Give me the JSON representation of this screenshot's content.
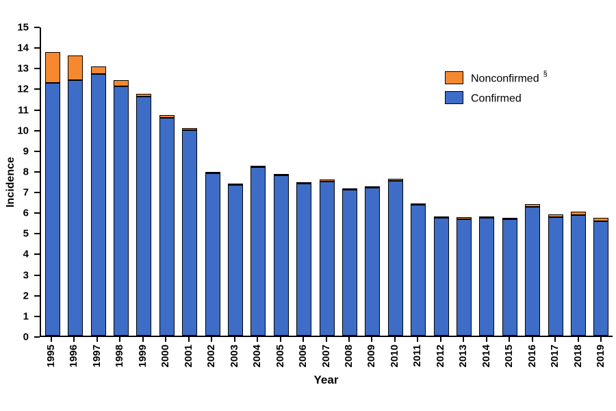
{
  "chart_data": {
    "type": "bar",
    "stacked": true,
    "title": "",
    "xlabel": "Year",
    "ylabel": "Incidence",
    "ylim": [
      0,
      15
    ],
    "ytick_step": 1,
    "grid": false,
    "legend_position": "upper-right",
    "categories": [
      "1995",
      "1996",
      "1997",
      "1998",
      "1999",
      "2000",
      "2001",
      "2002",
      "2003",
      "2004",
      "2005",
      "2006",
      "2007",
      "2008",
      "2009",
      "2010",
      "2011",
      "2012",
      "2013",
      "2014",
      "2015",
      "2016",
      "2017",
      "2018",
      "2019"
    ],
    "series": [
      {
        "name": "Confirmed",
        "color": "#3D6DC6",
        "values": [
          12.3,
          12.45,
          12.75,
          12.15,
          11.65,
          10.6,
          10.0,
          7.9,
          7.35,
          8.2,
          7.8,
          7.4,
          7.5,
          7.1,
          7.2,
          7.55,
          6.38,
          5.72,
          5.68,
          5.72,
          5.68,
          6.28,
          5.78,
          5.88,
          5.58
        ]
      },
      {
        "name": "Nonconfirmed",
        "color": "#F6892F",
        "values": [
          1.5,
          1.2,
          0.35,
          0.3,
          0.12,
          0.12,
          0.1,
          0.08,
          0.06,
          0.08,
          0.08,
          0.08,
          0.1,
          0.06,
          0.08,
          0.1,
          0.07,
          0.06,
          0.1,
          0.06,
          0.06,
          0.12,
          0.12,
          0.16,
          0.16
        ]
      }
    ],
    "totals": [
      13.8,
      13.65,
      13.1,
      12.45,
      11.77,
      10.72,
      10.1,
      7.98,
      7.41,
      8.28,
      7.88,
      7.48,
      7.6,
      7.16,
      7.28,
      7.65,
      6.45,
      5.78,
      5.78,
      5.78,
      5.74,
      6.4,
      5.9,
      6.04,
      5.74
    ],
    "legend": {
      "items": [
        {
          "label": "Nonconfirmed",
          "sup": "§",
          "color": "#F6892F"
        },
        {
          "label": "Confirmed",
          "sup": "",
          "color": "#3D6DC6"
        }
      ]
    }
  }
}
